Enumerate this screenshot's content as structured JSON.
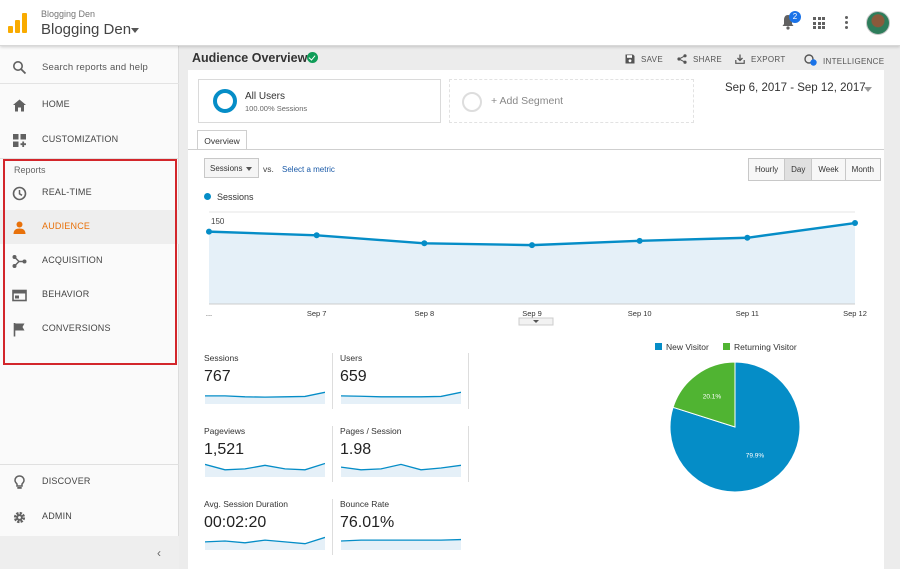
{
  "header": {
    "account_small": "Blogging Den",
    "account_name": "Blogging Den",
    "notification_count": "2"
  },
  "sidebar": {
    "search_placeholder": "Search reports and help",
    "items_top": [
      {
        "label": "HOME"
      },
      {
        "label": "CUSTOMIZATION"
      }
    ],
    "reports_header": "Reports",
    "reports_items": [
      {
        "label": "REAL-TIME"
      },
      {
        "label": "AUDIENCE"
      },
      {
        "label": "ACQUISITION"
      },
      {
        "label": "BEHAVIOR"
      },
      {
        "label": "CONVERSIONS"
      }
    ],
    "items_bottom": [
      {
        "label": "DISCOVER"
      },
      {
        "label": "ADMIN"
      }
    ],
    "collapse_glyph": "‹"
  },
  "page": {
    "title": "Audience Overview",
    "actions": {
      "save": "SAVE",
      "share": "SHARE",
      "export": "EXPORT",
      "intelligence": "INTELLIGENCE"
    }
  },
  "segments": {
    "current_name": "All Users",
    "current_sub": "100.00% Sessions",
    "add_label": "+ Add Segment"
  },
  "date_range": "Sep 6, 2017 - Sep 12, 2017",
  "tabs": {
    "overview": "Overview"
  },
  "controls": {
    "metric": "Sessions",
    "vs": "vs.",
    "select_metric": "Select a metric",
    "ranges": [
      "Hourly",
      "Day",
      "Week",
      "Month"
    ],
    "selected_range": "Day"
  },
  "chart_data": {
    "type": "line",
    "series": [
      {
        "name": "Sessions",
        "values": [
          118,
          112,
          99,
          96,
          103,
          108,
          132
        ]
      }
    ],
    "x": [
      "...",
      "Sep 7",
      "Sep 8",
      "Sep 9",
      "Sep 10",
      "Sep 11",
      "Sep 12"
    ],
    "yticks": [
      "150",
      "75"
    ],
    "ylim": [
      0,
      150
    ],
    "color": "#058dc7"
  },
  "kpis": [
    {
      "label": "Sessions",
      "value": "767"
    },
    {
      "label": "Users",
      "value": "659"
    },
    {
      "label": "Pageviews",
      "value": "1,521"
    },
    {
      "label": "Pages / Session",
      "value": "1.98"
    },
    {
      "label": "Avg. Session Duration",
      "value": "00:02:20"
    },
    {
      "label": "Bounce Rate",
      "value": "76.01%"
    }
  ],
  "pie": {
    "legend": [
      {
        "name": "New Visitor",
        "color": "#058dc7"
      },
      {
        "name": "Returning Visitor",
        "color": "#50b432"
      }
    ],
    "slices": [
      {
        "name": "New Visitor",
        "value": 79.9,
        "label": "79.9%"
      },
      {
        "name": "Returning Visitor",
        "value": 20.1,
        "label": "20.1%"
      }
    ]
  }
}
